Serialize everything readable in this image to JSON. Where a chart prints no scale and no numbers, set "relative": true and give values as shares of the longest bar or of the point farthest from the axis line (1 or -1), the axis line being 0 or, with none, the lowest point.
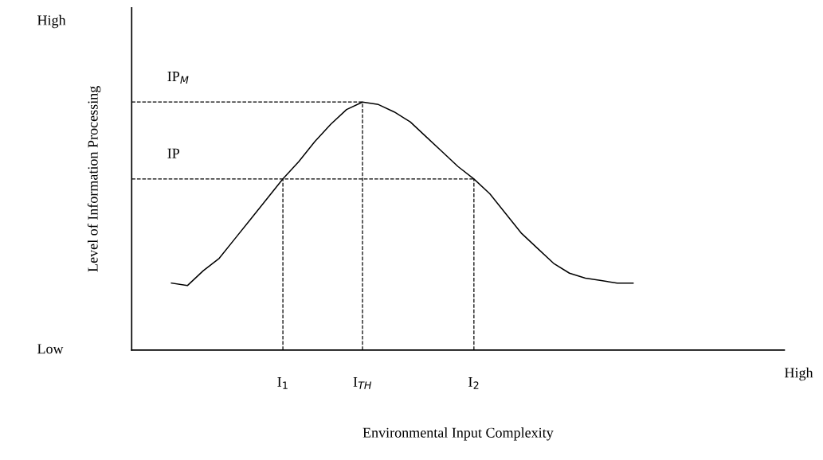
{
  "chart_data": {
    "type": "line",
    "relative": true,
    "xlabel": "Environmental Input Complexity",
    "ylabel": "Level of Information Processing",
    "legend": false,
    "marker": "none",
    "line_style": "solid",
    "categories": [
      null,
      null,
      null,
      null,
      null,
      null,
      null,
      "I$_{1}$",
      null,
      null,
      null,
      null,
      "I$_{TH}$",
      null,
      null,
      null,
      null,
      null,
      null,
      "I$_{2}$",
      null,
      null,
      null,
      null,
      null,
      null,
      null,
      null,
      null,
      null
    ],
    "series": [
      {
        "color": "#000000",
        "values": [
          0.27,
          0.26,
          0.32,
          0.37,
          0.45,
          0.53,
          0.61,
          0.69,
          0.76,
          0.84,
          0.91,
          0.97,
          1,
          0.99,
          0.96,
          0.92,
          0.86,
          0.8,
          0.74,
          0.69,
          0.63,
          0.55,
          0.47,
          0.41,
          0.35,
          0.31,
          0.29,
          0.28,
          0.27,
          0.27
        ]
      }
    ],
    "ref_lines": [
      {
        "axis": "y",
        "value": 1,
        "label": "IP$_{M}$",
        "color": "#000000",
        "line_style": "dashed"
      },
      {
        "axis": "y",
        "value": 0.69,
        "label": "IP",
        "color": "#000000",
        "line_style": "dashed"
      },
      {
        "axis": "x",
        "value": "I$_{1}$",
        "color": "#000000",
        "line_style": "dashed"
      },
      {
        "axis": "x",
        "value": "I$_{TH}$",
        "color": "#000000",
        "line_style": "dashed"
      },
      {
        "axis": "x",
        "value": "I$_{2}$",
        "color": "#000000",
        "line_style": "dashed"
      }
    ],
    "annotations": [
      "High",
      "Low",
      "High"
    ]
  }
}
